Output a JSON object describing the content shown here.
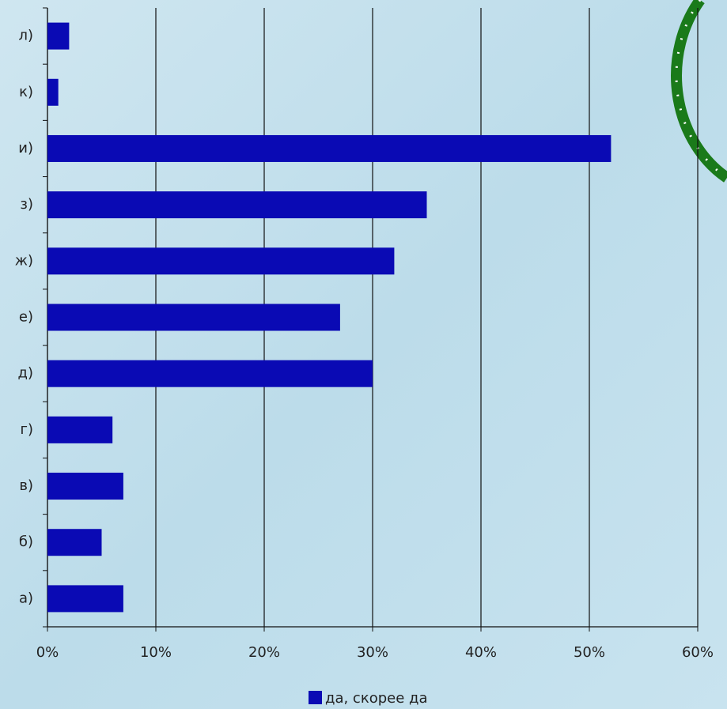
{
  "chart_data": {
    "type": "bar",
    "orientation": "horizontal",
    "categories": [
      "а)",
      "б)",
      "в)",
      "г)",
      "д)",
      "е)",
      "ж)",
      "з)",
      "и)",
      "к)",
      "л)"
    ],
    "series": [
      {
        "name": "да, скорее да",
        "color": "#0a0ab4",
        "values": [
          7,
          5,
          7,
          6,
          30,
          27,
          32,
          35,
          52,
          1,
          2
        ]
      }
    ],
    "xlim": [
      0,
      60
    ],
    "xticks": [
      {
        "value": 0,
        "label": "0%"
      },
      {
        "value": 10,
        "label": "10%"
      },
      {
        "value": 20,
        "label": "20%"
      },
      {
        "value": 30,
        "label": "30%"
      },
      {
        "value": 40,
        "label": "40%"
      },
      {
        "value": 50,
        "label": "50%"
      },
      {
        "value": 60,
        "label": "60%"
      }
    ],
    "grid": true,
    "legend": "bottom"
  }
}
